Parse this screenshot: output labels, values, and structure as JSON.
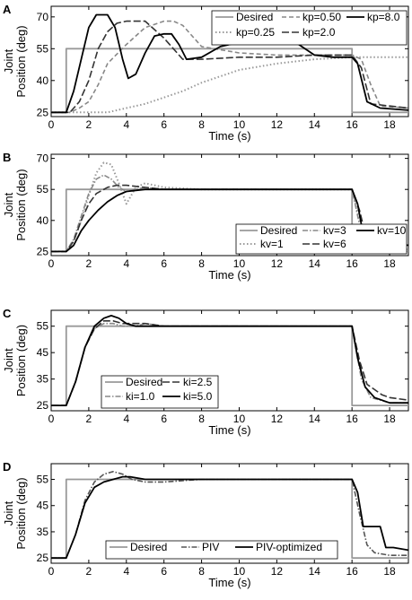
{
  "chart_data": [
    {
      "type": "line",
      "panel": "A",
      "xlabel": "Time (s)",
      "ylabel": [
        "Joint",
        "Position (deg)"
      ],
      "xlim": [
        0,
        19
      ],
      "ylim": [
        23,
        75
      ],
      "xticks": [
        0,
        2,
        4,
        6,
        8,
        10,
        12,
        14,
        16,
        18
      ],
      "yticks": [
        25,
        40,
        55,
        70
      ],
      "legend_position": "top-right",
      "legend_columns": 3,
      "series": [
        {
          "name": "Desired",
          "color": "#999999",
          "style": "solid",
          "x": [
            0,
            0.8,
            0.8,
            16,
            16,
            19
          ],
          "y": [
            25,
            25,
            55,
            55,
            25,
            25
          ]
        },
        {
          "name": "kp=0.25",
          "color": "#999999",
          "style": "dotted",
          "x": [
            0,
            1,
            2,
            3,
            4,
            5,
            6,
            7,
            8,
            9,
            10,
            12,
            14,
            16,
            16.5,
            17,
            19
          ],
          "y": [
            25,
            25,
            25,
            25,
            27,
            29,
            32,
            35,
            39,
            42,
            45,
            48,
            50,
            51,
            51,
            51,
            51
          ]
        },
        {
          "name": "kp=0.50",
          "color": "#888888",
          "style": "dashed",
          "x": [
            0,
            1,
            1.5,
            2,
            2.5,
            3,
            4,
            5,
            6,
            6.5,
            7,
            8,
            10,
            12,
            14,
            16,
            16.5,
            17,
            17.5,
            19
          ],
          "y": [
            25,
            25,
            27,
            30,
            38,
            48,
            57,
            65,
            68,
            68,
            66,
            56,
            53,
            52,
            52,
            52,
            50,
            38,
            28,
            27
          ]
        },
        {
          "name": "kp=2.0",
          "color": "#333333",
          "style": "longdash",
          "x": [
            0,
            1,
            1.5,
            2,
            2.5,
            3,
            3.5,
            4,
            5,
            6,
            7,
            8,
            10,
            12,
            14,
            16,
            16.5,
            17,
            19
          ],
          "y": [
            25,
            25,
            30,
            40,
            55,
            63,
            67,
            68,
            68,
            60,
            50,
            50,
            51,
            51,
            52,
            52,
            46,
            29,
            27
          ]
        },
        {
          "name": "kp=8.0",
          "color": "#000000",
          "style": "solid",
          "x": [
            0,
            0.8,
            1.2,
            1.6,
            2,
            2.4,
            3,
            3.4,
            3.8,
            4.1,
            4.5,
            5,
            5.5,
            6,
            6.4,
            6.8,
            7.2,
            8,
            9,
            10,
            12,
            13,
            14,
            15,
            16,
            16.3,
            16.8,
            17.5,
            19
          ],
          "y": [
            25,
            25,
            35,
            50,
            65,
            71,
            71,
            65,
            50,
            41,
            43,
            53,
            61,
            62,
            62,
            57,
            50,
            51,
            56,
            58,
            58,
            58,
            52,
            51,
            51,
            48,
            30,
            27,
            26
          ]
        }
      ]
    },
    {
      "type": "line",
      "panel": "B",
      "xlabel": "Time (s)",
      "ylabel": [
        "Joint",
        "Position (deg)"
      ],
      "xlim": [
        0,
        19
      ],
      "ylim": [
        23,
        72
      ],
      "xticks": [
        0,
        2,
        4,
        6,
        8,
        10,
        12,
        14,
        16,
        18
      ],
      "yticks": [
        25,
        40,
        55,
        70
      ],
      "legend_position": "bottom-right",
      "legend_columns": 3,
      "series": [
        {
          "name": "Desired",
          "color": "#999999",
          "style": "solid",
          "x": [
            0,
            0.8,
            0.8,
            16,
            16,
            19
          ],
          "y": [
            25,
            25,
            55,
            55,
            25,
            25
          ]
        },
        {
          "name": "kv=1",
          "color": "#999999",
          "style": "dotted",
          "x": [
            0,
            0.8,
            1.2,
            1.6,
            2,
            2.4,
            2.8,
            3.2,
            3.6,
            4,
            4.5,
            5,
            6,
            8,
            10,
            12,
            14,
            16,
            16.4,
            16.8,
            17.2,
            19
          ],
          "y": [
            25,
            25,
            30,
            40,
            52,
            63,
            68,
            67,
            58,
            48,
            56,
            58,
            56,
            55,
            55,
            55,
            55,
            55,
            40,
            28,
            26,
            26
          ]
        },
        {
          "name": "kv=3",
          "color": "#888888",
          "style": "dashdot",
          "x": [
            0,
            0.8,
            1.2,
            1.6,
            2,
            2.4,
            2.8,
            3.2,
            3.6,
            4,
            5,
            6,
            8,
            10,
            12,
            14,
            16,
            16.4,
            16.8,
            19
          ],
          "y": [
            25,
            25,
            31,
            42,
            53,
            60,
            62,
            60,
            56,
            54,
            56,
            55,
            55,
            55,
            55,
            55,
            55,
            38,
            27,
            26
          ]
        },
        {
          "name": "kv=6",
          "color": "#333333",
          "style": "longdash",
          "x": [
            0,
            0.8,
            1.2,
            1.6,
            2,
            2.4,
            3,
            3.5,
            4,
            5,
            6,
            8,
            10,
            12,
            14,
            16,
            16.4,
            16.8,
            17.5,
            19
          ],
          "y": [
            25,
            25,
            30,
            40,
            48,
            53,
            56,
            57,
            57,
            56,
            55,
            55,
            55,
            55,
            55,
            55,
            45,
            30,
            29,
            28
          ]
        },
        {
          "name": "kv=10",
          "color": "#000000",
          "style": "solid",
          "x": [
            0,
            0.8,
            1.2,
            1.6,
            2,
            2.5,
            3,
            3.5,
            4,
            5,
            6,
            8,
            10,
            12,
            14,
            16,
            16.3,
            16.6,
            17,
            17.5,
            18,
            19
          ],
          "y": [
            25,
            25,
            28,
            35,
            40,
            45,
            49,
            52,
            54,
            55,
            55,
            55,
            55,
            55,
            55,
            55,
            48,
            33,
            33,
            30,
            29,
            28
          ]
        }
      ]
    },
    {
      "type": "line",
      "panel": "C",
      "xlabel": "Time (s)",
      "ylabel": [
        "Joint",
        "Position (deg)"
      ],
      "xlim": [
        0,
        19
      ],
      "ylim": [
        23,
        61
      ],
      "xticks": [
        0,
        2,
        4,
        6,
        8,
        10,
        12,
        14,
        16,
        18
      ],
      "yticks": [
        25,
        35,
        45,
        55
      ],
      "legend_position": "bottom-left",
      "legend_columns": 2,
      "series": [
        {
          "name": "Desired",
          "color": "#999999",
          "style": "solid",
          "x": [
            0,
            0.8,
            0.8,
            16,
            16,
            19
          ],
          "y": [
            25,
            25,
            55,
            55,
            25,
            25
          ]
        },
        {
          "name": "ki=1.0",
          "color": "#888888",
          "style": "dashdot",
          "x": [
            0,
            0.8,
            1.3,
            1.8,
            2.3,
            2.8,
            3.3,
            3.8,
            4.5,
            5,
            6,
            8,
            10,
            12,
            14,
            16,
            16.5,
            17,
            17.5,
            18,
            19
          ],
          "y": [
            25,
            25,
            34,
            47,
            54,
            56,
            56,
            55,
            55,
            56,
            55,
            55,
            55,
            55,
            55,
            55,
            35,
            28,
            27,
            26,
            26
          ]
        },
        {
          "name": "ki=2.5",
          "color": "#333333",
          "style": "longdash",
          "x": [
            0,
            0.8,
            1.3,
            1.8,
            2.3,
            2.8,
            3.3,
            3.8,
            4.2,
            5,
            6,
            8,
            10,
            12,
            14,
            16,
            16.4,
            16.8,
            17.2,
            17.6,
            18,
            19
          ],
          "y": [
            25,
            25,
            34,
            47,
            54,
            57,
            57,
            56,
            56,
            56,
            55,
            55,
            55,
            55,
            55,
            55,
            42,
            33,
            31,
            29,
            28,
            27
          ]
        },
        {
          "name": "ki=5.0",
          "color": "#000000",
          "style": "solid",
          "x": [
            0,
            0.8,
            1.3,
            1.8,
            2.3,
            2.8,
            3.2,
            3.6,
            4,
            4.5,
            5,
            6,
            8,
            10,
            12,
            14,
            16,
            16.3,
            16.7,
            17.2,
            18,
            19
          ],
          "y": [
            25,
            25,
            34,
            47,
            55,
            58,
            59,
            58,
            56,
            55,
            55,
            55,
            55,
            55,
            55,
            55,
            55,
            43,
            32,
            28,
            26,
            26
          ]
        }
      ]
    },
    {
      "type": "line",
      "panel": "D",
      "xlabel": "Time (s)",
      "ylabel": [
        "Joint",
        "Position (deg)"
      ],
      "xlim": [
        0,
        19
      ],
      "ylim": [
        23,
        61
      ],
      "xticks": [
        0,
        2,
        4,
        6,
        8,
        10,
        12,
        14,
        16,
        18
      ],
      "yticks": [
        25,
        35,
        45,
        55
      ],
      "legend_position": "bottom",
      "legend_columns": 3,
      "series": [
        {
          "name": "Desired",
          "color": "#999999",
          "style": "solid",
          "x": [
            0,
            0.8,
            0.8,
            16,
            16,
            19
          ],
          "y": [
            25,
            25,
            55,
            55,
            25,
            25
          ]
        },
        {
          "name": "PIV",
          "color": "#555555",
          "style": "dashdot",
          "x": [
            0,
            0.8,
            1.3,
            1.8,
            2.3,
            2.8,
            3.3,
            3.8,
            4.3,
            5,
            6,
            8,
            10,
            12,
            14,
            16,
            16.4,
            16.8,
            17.2,
            18,
            19
          ],
          "y": [
            25,
            25,
            34,
            47,
            54,
            57,
            58,
            57,
            55,
            54,
            54,
            55,
            55,
            55,
            55,
            55,
            42,
            30,
            27,
            26,
            26
          ]
        },
        {
          "name": "PIV-optimized",
          "color": "#000000",
          "style": "solid",
          "x": [
            0,
            0.8,
            1.3,
            1.8,
            2.3,
            2.8,
            3.3,
            3.8,
            4.2,
            5,
            6,
            8,
            10,
            12,
            14,
            16,
            16.3,
            16.6,
            17,
            17.5,
            17.8,
            18.2,
            19
          ],
          "y": [
            25,
            25,
            34,
            46,
            52,
            54,
            55,
            56,
            56,
            55,
            55,
            55,
            55,
            55,
            55,
            55,
            50,
            37,
            37,
            37,
            29,
            29,
            28
          ]
        }
      ]
    }
  ]
}
